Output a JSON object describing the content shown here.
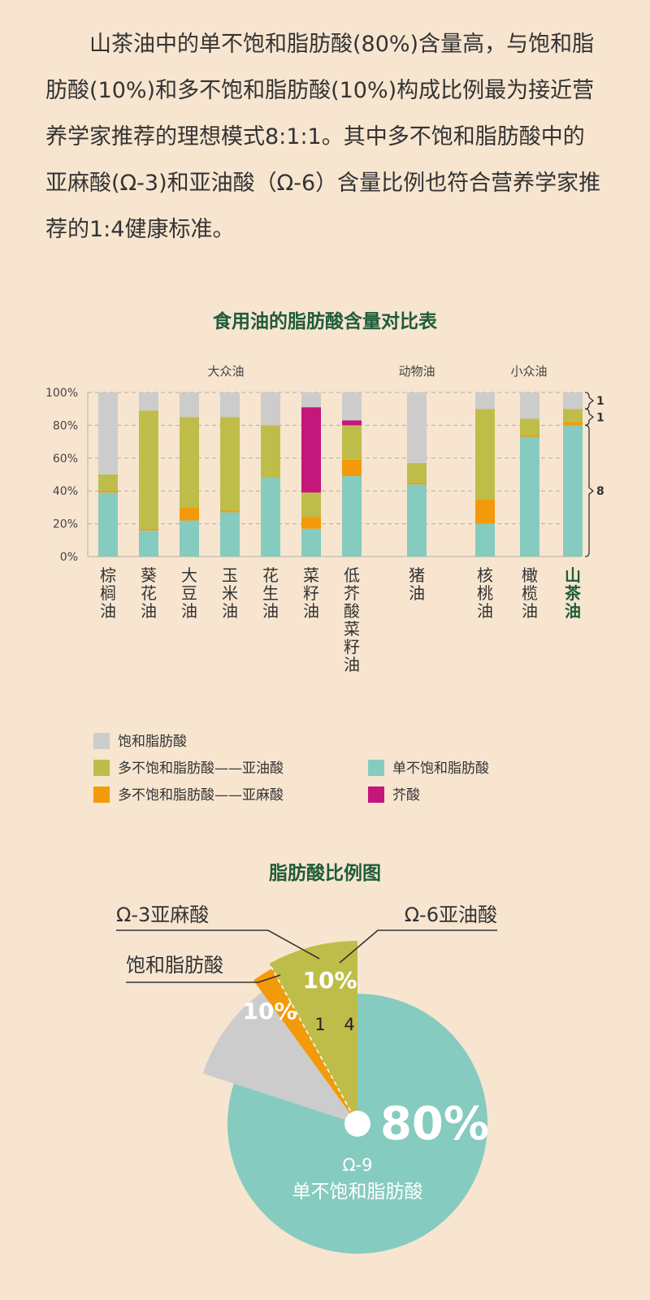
{
  "intro_text": "山茶油中的单不饱和脂肪酸(80%)含量高，与饱和脂肪酸(10%)和多不饱和脂肪酸(10%)构成比例最为接近营养学家推荐的理想模式8:1:1。其中多不饱和脂肪酸中的亚麻酸(Ω-3)和亚油酸（Ω-6）含量比例也符合营养学家推荐的1:4健康标准。",
  "colors": {
    "saturated": "#cccccc",
    "linoleic": "#bfbd4a",
    "linolenic": "#f39a0a",
    "mono": "#86cbbf",
    "erucic": "#c4177c",
    "title_green": "#1f5c3a"
  },
  "chart_data": [
    {
      "type": "bar",
      "stacked": true,
      "title": "食用油的脂肪酸含量对比表",
      "groups": [
        {
          "label": "大众油",
          "categories": [
            "棕榈油",
            "葵花油",
            "大豆油",
            "玉米油",
            "花生油",
            "菜籽油",
            "低芥酸菜籽油"
          ]
        },
        {
          "label": "动物油",
          "categories": [
            "猪油"
          ]
        },
        {
          "label": "小众油",
          "categories": [
            "核桃油",
            "橄榄油",
            "山茶油"
          ]
        }
      ],
      "categories": [
        "棕榈油",
        "葵花油",
        "大豆油",
        "玉米油",
        "花生油",
        "菜籽油",
        "低芥酸菜籽油",
        "猪油",
        "核桃油",
        "橄榄油",
        "山茶油"
      ],
      "highlight_category": "山茶油",
      "series": [
        {
          "name": "单不饱和脂肪酸",
          "key": "mono",
          "values": [
            39,
            16,
            22,
            27,
            48,
            17,
            49,
            44,
            20,
            73,
            80
          ]
        },
        {
          "name": "多不饱和脂肪酸——亚麻酸",
          "key": "linolenic",
          "values": [
            1,
            1,
            8,
            1,
            0,
            7,
            10,
            1,
            15,
            1,
            2
          ]
        },
        {
          "name": "多不饱和脂肪酸——亚油酸",
          "key": "linoleic",
          "values": [
            10,
            72,
            55,
            57,
            32,
            15,
            21,
            12,
            55,
            10,
            8
          ]
        },
        {
          "name": "芥酸",
          "key": "erucic",
          "values": [
            0,
            0,
            0,
            0,
            0,
            52,
            3,
            0,
            0,
            0,
            0
          ]
        },
        {
          "name": "饱和脂肪酸",
          "key": "saturated",
          "values": [
            50,
            11,
            15,
            15,
            20,
            9,
            17,
            43,
            10,
            16,
            10
          ]
        }
      ],
      "ylim": [
        0,
        100
      ],
      "yticks": [
        "0%",
        "20%",
        "40%",
        "60%",
        "80%",
        "100%"
      ],
      "grid": true,
      "brackets": [
        {
          "label": "1",
          "from": 90,
          "to": 100
        },
        {
          "label": "1",
          "from": 80,
          "to": 90
        },
        {
          "label": "8",
          "from": 0,
          "to": 80
        }
      ],
      "legend_order": [
        "saturated",
        "linoleic",
        "linolenic",
        "mono",
        "erucic"
      ],
      "legend_placement": "bottom"
    },
    {
      "type": "pie",
      "title": "脂肪酸比例图",
      "slices": [
        {
          "name": "单不饱和脂肪酸",
          "value": 80,
          "label": "80%",
          "key": "mono",
          "sub1": "Ω-9",
          "sub2": "单不饱和脂肪酸"
        },
        {
          "name": "饱和脂肪酸",
          "value": 10,
          "label": "10%",
          "key": "saturated"
        },
        {
          "name": "Ω-3亚麻酸",
          "value": 2,
          "ratio": "1",
          "key": "linolenic"
        },
        {
          "name": "Ω-6亚油酸",
          "value": 8,
          "ratio": "4",
          "key": "linoleic"
        }
      ],
      "combined_label": "10%"
    }
  ]
}
